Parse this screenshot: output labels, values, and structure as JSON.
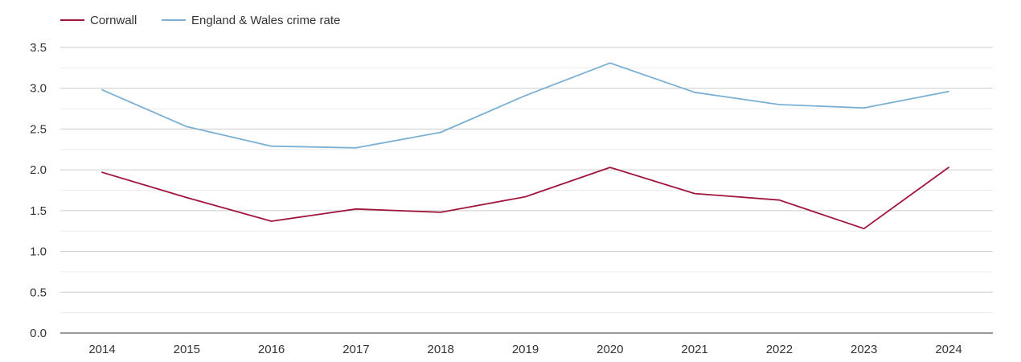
{
  "chart_data": {
    "type": "line",
    "title": "",
    "xlabel": "",
    "ylabel": "",
    "categories": [
      "2014",
      "2015",
      "2016",
      "2017",
      "2018",
      "2019",
      "2020",
      "2021",
      "2022",
      "2023",
      "2024"
    ],
    "ylim": [
      0,
      3.5
    ],
    "yticks": [
      "0.0",
      "0.5",
      "1.0",
      "1.5",
      "2.0",
      "2.5",
      "3.0",
      "3.5"
    ],
    "grid": true,
    "legend_position": "top-left",
    "series": [
      {
        "name": "Cornwall",
        "color": "#a0163c",
        "values": [
          1.97,
          1.66,
          1.37,
          1.52,
          1.48,
          1.67,
          2.03,
          1.71,
          1.63,
          1.28,
          2.03
        ]
      },
      {
        "name": "England & Wales crime rate",
        "color": "#7ab0d4",
        "values": [
          2.98,
          2.53,
          2.29,
          2.27,
          2.46,
          2.91,
          3.31,
          2.95,
          2.8,
          2.76,
          2.96
        ]
      }
    ]
  }
}
